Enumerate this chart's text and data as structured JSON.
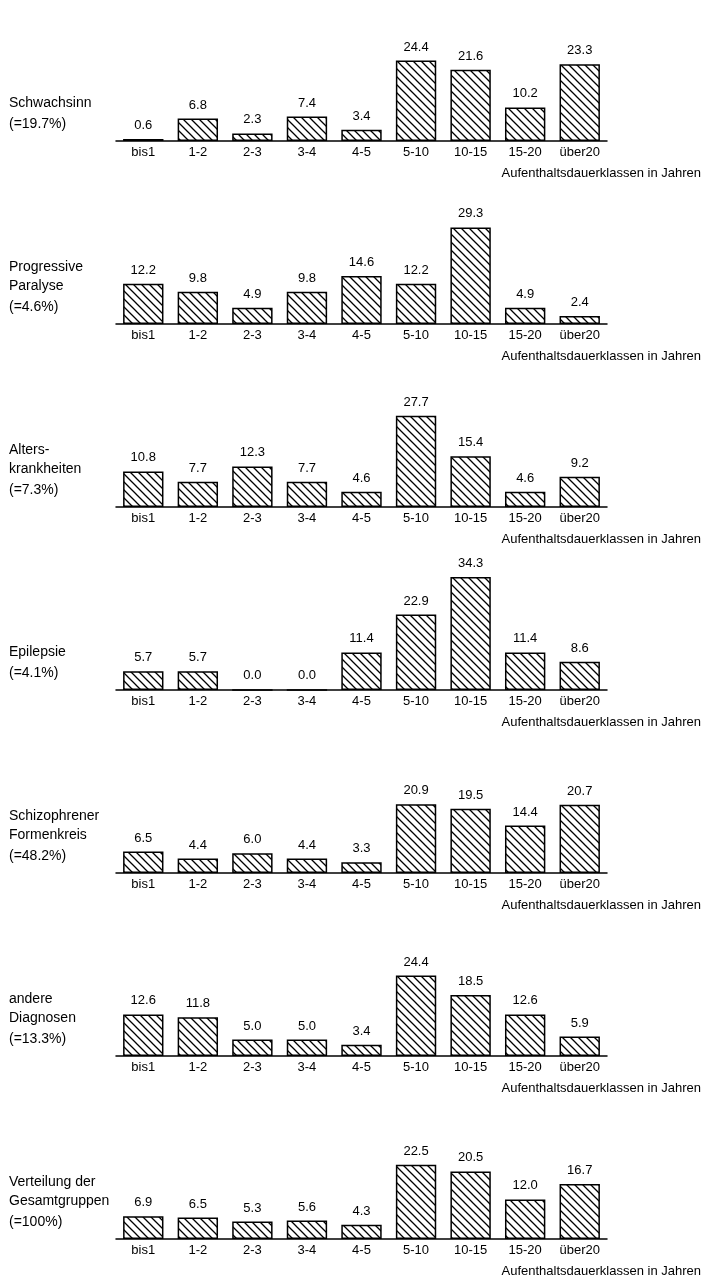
{
  "chart_data": [
    {
      "type": "bar",
      "title": "Schwachsinn",
      "subtitle": "(=19.7%)",
      "xlabel": "Aufenthaltsdauerklassen in Jahren",
      "categories": [
        "bis1",
        "1-2",
        "2-3",
        "3-4",
        "4-5",
        "5-10",
        "10-15",
        "15-20",
        "über20"
      ],
      "color": "#000000",
      "values": [
        0.6,
        6.8,
        2.3,
        7.4,
        3.4,
        24.4,
        21.6,
        10.2,
        23.3
      ],
      "value_labels": [
        "0.6",
        "6.8",
        "2.3",
        "7.4",
        "3.4",
        "24.4",
        "21.6",
        "10.2",
        "23.3"
      ]
    },
    {
      "type": "bar",
      "title": "Progressive\nParalyse",
      "subtitle": "(=4.6%)",
      "xlabel": "Aufenthaltsdauerklassen in Jahren",
      "categories": [
        "bis1",
        "1-2",
        "2-3",
        "3-4",
        "4-5",
        "5-10",
        "10-15",
        "15-20",
        "über20"
      ],
      "color": "#000000",
      "values": [
        12.2,
        9.8,
        4.9,
        9.8,
        14.6,
        12.2,
        29.3,
        4.9,
        2.4
      ],
      "value_labels": [
        "12.2",
        "9.8",
        "4.9",
        "9.8",
        "14.6",
        "12.2",
        "29.3",
        "4.9",
        "2.4"
      ]
    },
    {
      "type": "bar",
      "title": "Alters-\nkrankheiten",
      "subtitle": "(=7.3%)",
      "xlabel": "Aufenthaltsdauerklassen in Jahren",
      "categories": [
        "bis1",
        "1-2",
        "2-3",
        "3-4",
        "4-5",
        "5-10",
        "10-15",
        "15-20",
        "über20"
      ],
      "color": "#000000",
      "values": [
        10.8,
        7.7,
        12.3,
        7.7,
        4.6,
        27.7,
        15.4,
        4.6,
        9.2
      ],
      "value_labels": [
        "10.8",
        "7.7",
        "12.3",
        "7.7",
        "4.6",
        "27.7",
        "15.4",
        "4.6",
        "9.2"
      ]
    },
    {
      "type": "bar",
      "title": "Epilepsie",
      "subtitle": "(=4.1%)",
      "xlabel": "Aufenthaltsdauerklassen in Jahren",
      "categories": [
        "bis1",
        "1-2",
        "2-3",
        "3-4",
        "4-5",
        "5-10",
        "10-15",
        "15-20",
        "über20"
      ],
      "color": "#000000",
      "values": [
        5.7,
        5.7,
        0.0,
        0.0,
        11.4,
        22.9,
        34.3,
        11.4,
        8.6
      ],
      "value_labels": [
        "5.7",
        "5.7",
        "0.0",
        "0.0",
        "11.4",
        "22.9",
        "34.3",
        "11.4",
        "8.6"
      ]
    },
    {
      "type": "bar",
      "title": "Schizophrener\nFormenkreis",
      "subtitle": "(=48.2%)",
      "xlabel": "Aufenthaltsdauerklassen in Jahren",
      "categories": [
        "bis1",
        "1-2",
        "2-3",
        "3-4",
        "4-5",
        "5-10",
        "10-15",
        "15-20",
        "über20"
      ],
      "color": "#000000",
      "values": [
        6.5,
        4.4,
        6.0,
        4.4,
        3.3,
        20.9,
        19.5,
        14.4,
        20.7
      ],
      "value_labels": [
        "6.5",
        "4.4",
        "6.0",
        "4.4",
        "3.3",
        "20.9",
        "19.5",
        "14.4",
        "20.7"
      ]
    },
    {
      "type": "bar",
      "title": "andere\nDiagnosen",
      "subtitle": "(=13.3%)",
      "xlabel": "Aufenthaltsdauerklassen in Jahren",
      "categories": [
        "bis1",
        "1-2",
        "2-3",
        "3-4",
        "4-5",
        "5-10",
        "10-15",
        "15-20",
        "über20"
      ],
      "color": "#000000",
      "values": [
        12.6,
        11.8,
        5.0,
        5.0,
        3.4,
        24.4,
        18.5,
        12.6,
        5.9
      ],
      "value_labels": [
        "12.6",
        "11.8",
        "5.0",
        "5.0",
        "3.4",
        "24.4",
        "18.5",
        "12.6",
        "5.9"
      ]
    },
    {
      "type": "bar",
      "title": "Verteilung der\nGesamtgruppen",
      "subtitle": "(=100%)",
      "xlabel": "Aufenthaltsdauerklassen in Jahren",
      "categories": [
        "bis1",
        "1-2",
        "2-3",
        "3-4",
        "4-5",
        "5-10",
        "10-15",
        "15-20",
        "über20"
      ],
      "color": "#000000",
      "values": [
        6.9,
        6.5,
        5.3,
        5.6,
        4.3,
        22.5,
        20.5,
        12.0,
        16.7
      ],
      "value_labels": [
        "6.9",
        "6.5",
        "5.3",
        "5.6",
        "4.3",
        "22.5",
        "20.5",
        "12.0",
        "16.7"
      ]
    }
  ]
}
